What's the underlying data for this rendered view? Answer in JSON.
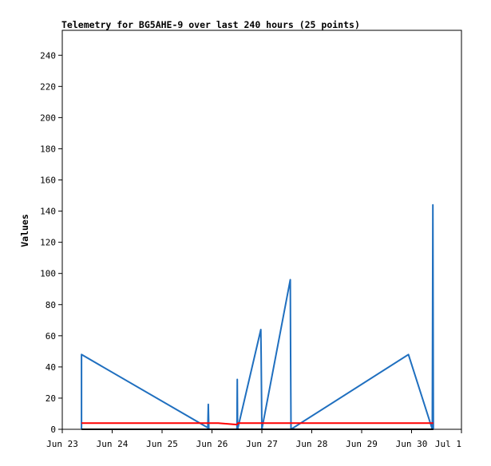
{
  "chart_data": {
    "type": "line",
    "title": "Telemetry for BG5AHE-9 over last 240 hours (25 points)",
    "xlabel": "",
    "ylabel": "Values",
    "ylim": [
      0,
      256
    ],
    "xlim": [
      "2025-06-23T00:00",
      "2025-07-01T00:00"
    ],
    "y_ticks": [
      0,
      20,
      40,
      60,
      80,
      100,
      120,
      140,
      160,
      180,
      200,
      220,
      240
    ],
    "x_ticks": [
      {
        "x": "2025-06-23T00:00",
        "label": "Jun 23"
      },
      {
        "x": "2025-06-24T00:00",
        "label": "Jun 24"
      },
      {
        "x": "2025-06-25T00:00",
        "label": "Jun 25"
      },
      {
        "x": "2025-06-26T00:00",
        "label": "Jun 26"
      },
      {
        "x": "2025-06-27T00:00",
        "label": "Jun 27"
      },
      {
        "x": "2025-06-28T00:00",
        "label": "Jun 28"
      },
      {
        "x": "2025-06-29T00:00",
        "label": "Jun 29"
      },
      {
        "x": "2025-06-30T00:00",
        "label": "Jun 30"
      },
      {
        "x": "2025-07-01T00:00",
        "label": "Jul 1"
      }
    ],
    "grid": false,
    "legend": "none",
    "series": [
      {
        "color": "#1f6fbf",
        "points": [
          [
            "2025-06-23T09:15",
            0
          ],
          [
            "2025-06-23T09:15",
            48
          ],
          [
            "2025-06-25T22:00",
            1
          ],
          [
            "2025-06-25T22:15",
            16
          ],
          [
            "2025-06-25T22:30",
            0
          ],
          [
            "2025-06-26T12:00",
            0
          ],
          [
            "2025-06-26T12:10",
            32
          ],
          [
            "2025-06-26T12:20",
            0
          ],
          [
            "2025-06-26T23:30",
            64
          ],
          [
            "2025-06-26T23:40",
            48
          ],
          [
            "2025-06-27T00:00",
            0
          ],
          [
            "2025-06-27T13:40",
            96
          ],
          [
            "2025-06-27T13:50",
            48
          ],
          [
            "2025-06-27T14:00",
            0
          ],
          [
            "2025-06-29T22:30",
            48
          ],
          [
            "2025-06-30T10:00",
            0
          ],
          [
            "2025-06-30T10:15",
            144
          ],
          [
            "2025-06-30T10:30",
            0
          ]
        ]
      },
      {
        "color": "#ff0000",
        "points": [
          [
            "2025-06-23T09:15",
            4
          ],
          [
            "2025-06-26T03:00",
            4
          ],
          [
            "2025-06-26T12:00",
            3
          ],
          [
            "2025-06-26T12:30",
            4
          ],
          [
            "2025-06-30T10:30",
            4
          ]
        ]
      },
      {
        "color": "#000000",
        "points": [
          [
            "2025-06-23T09:15",
            0
          ],
          [
            "2025-06-30T10:30",
            0
          ]
        ]
      }
    ]
  }
}
